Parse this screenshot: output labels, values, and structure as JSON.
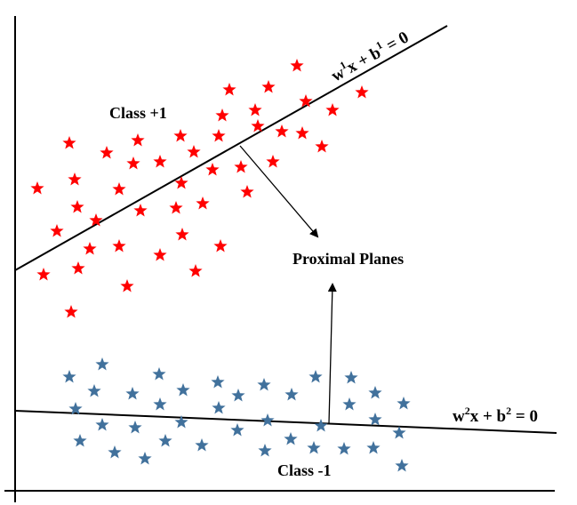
{
  "labels": {
    "class_pos": "Class +1",
    "class_neg": "Class -1",
    "proximal": "Proximal Planes"
  },
  "plane1": {
    "base": "w",
    "sup": "1",
    "mid": "x + b",
    "sup2": "1",
    "tail": " = 0"
  },
  "plane2": {
    "base": "w",
    "sup": "2",
    "mid": "x + b",
    "sup2": "2",
    "tail": " = 0"
  },
  "colors": {
    "positive": "#ff0000",
    "negative": "#41719c",
    "line": "#000000"
  },
  "icons": {
    "point_marker": "star-icon"
  }
}
